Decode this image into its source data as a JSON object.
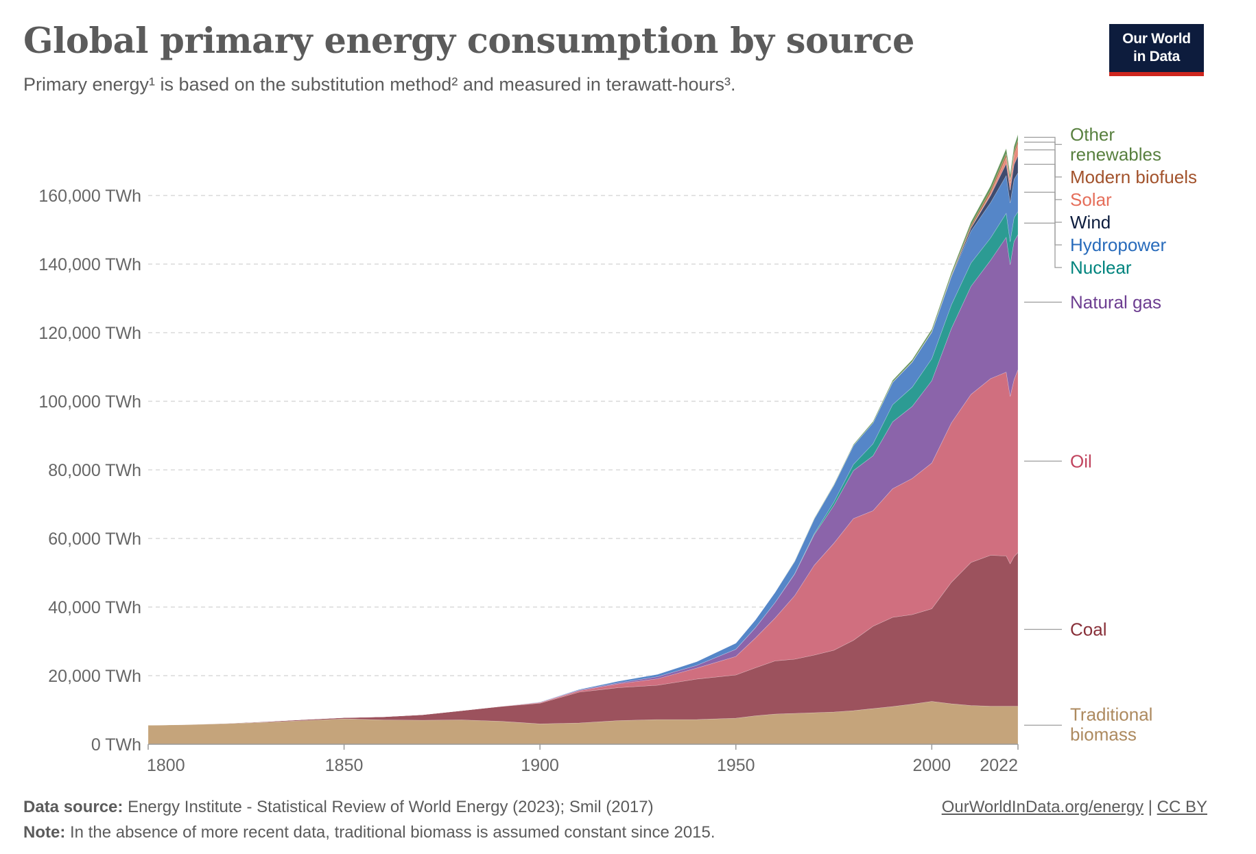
{
  "title": "Global primary energy consumption by source",
  "subtitle": "Primary energy¹ is based on the substitution method² and measured in terawatt-hours³.",
  "logo": {
    "line1": "Our World",
    "line2": "in Data"
  },
  "footer": {
    "source_label": "Data source:",
    "source_text": "Energy Institute - Statistical Review of World Energy (2023); Smil (2017)",
    "note_label": "Note:",
    "note_text": "In the absence of more recent data, traditional biomass is assumed constant since 2015.",
    "link_text": "OurWorldInData.org/energy",
    "separator": "|",
    "license": "CC BY"
  },
  "chart_data": {
    "type": "area",
    "stacked": true,
    "title": "Global primary energy consumption by source",
    "xlabel": "",
    "ylabel": "",
    "xlim": [
      1800,
      2022
    ],
    "ylim": [
      0,
      180000
    ],
    "grid": true,
    "x_ticks": [
      1800,
      1850,
      1900,
      1950,
      2000,
      2022
    ],
    "x_tick_labels": [
      "1800",
      "1850",
      "1900",
      "1950",
      "2000",
      "2022"
    ],
    "y_ticks": [
      0,
      20000,
      40000,
      60000,
      80000,
      100000,
      120000,
      140000,
      160000
    ],
    "y_tick_labels": [
      "0 TWh",
      "20,000 TWh",
      "40,000 TWh",
      "60,000 TWh",
      "80,000 TWh",
      "100,000 TWh",
      "120,000 TWh",
      "140,000 TWh",
      "160,000 TWh"
    ],
    "legend_position": "right",
    "x": [
      1800,
      1810,
      1820,
      1830,
      1840,
      1850,
      1860,
      1870,
      1880,
      1890,
      1900,
      1910,
      1920,
      1930,
      1940,
      1950,
      1955,
      1960,
      1965,
      1970,
      1975,
      1980,
      1985,
      1990,
      1995,
      2000,
      2005,
      2010,
      2015,
      2019,
      2020,
      2021,
      2022
    ],
    "series": [
      {
        "name": "Traditional biomass",
        "label_lines": [
          "Traditional",
          "biomass"
        ],
        "color": "#c5a47b",
        "label_color": "#ad8a5f",
        "values": [
          5550,
          5700,
          6000,
          6400,
          6900,
          7400,
          7100,
          7000,
          7100,
          6700,
          5950,
          6200,
          6900,
          7200,
          7200,
          7600,
          8300,
          8800,
          9000,
          9200,
          9400,
          9800,
          10400,
          11000,
          11700,
          12500,
          11800,
          11300,
          11100,
          11100,
          11100,
          11100,
          11100
        ]
      },
      {
        "name": "Coal",
        "label_lines": [
          "Coal"
        ],
        "color": "#9c525d",
        "label_color": "#883039",
        "values": [
          0,
          50,
          100,
          200,
          300,
          350,
          900,
          1600,
          2700,
          4300,
          6000,
          9000,
          9600,
          10000,
          11800,
          12600,
          14000,
          15500,
          15800,
          16800,
          18000,
          20500,
          24000,
          26000,
          26100,
          27000,
          35400,
          41700,
          44000,
          43800,
          41500,
          43600,
          44800
        ]
      },
      {
        "name": "Oil",
        "label_lines": [
          "Oil"
        ],
        "color": "#d06f7f",
        "label_color": "#c1445e",
        "values": [
          0,
          0,
          0,
          0,
          0,
          0,
          0,
          0,
          0,
          50,
          200,
          400,
          1100,
          1900,
          3200,
          5400,
          8700,
          12500,
          18500,
          26200,
          31200,
          35500,
          33700,
          37500,
          39700,
          42500,
          46500,
          49000,
          51500,
          53600,
          48800,
          51600,
          53300
        ]
      },
      {
        "name": "Natural gas",
        "label_lines": [
          "Natural gas"
        ],
        "color": "#8b64aa",
        "label_color": "#6d3e91",
        "values": [
          0,
          0,
          0,
          0,
          0,
          0,
          0,
          0,
          0,
          0,
          100,
          200,
          300,
          600,
          800,
          2100,
          3000,
          4500,
          6300,
          8900,
          11000,
          14000,
          16000,
          19500,
          21000,
          24000,
          27500,
          31500,
          34500,
          39300,
          38400,
          40300,
          39400
        ]
      },
      {
        "name": "Nuclear",
        "label_lines": [
          "Nuclear"
        ],
        "color": "#2c9b93",
        "label_color": "#00847e",
        "values": [
          0,
          0,
          0,
          0,
          0,
          0,
          0,
          0,
          0,
          0,
          0,
          0,
          0,
          0,
          0,
          0,
          0,
          10,
          100,
          300,
          1000,
          1800,
          3500,
          5000,
          5600,
          6400,
          6900,
          6800,
          6500,
          7000,
          6700,
          6900,
          6700
        ]
      },
      {
        "name": "Hydropower",
        "label_lines": [
          "Hydropower"
        ],
        "color": "#5586c8",
        "label_color": "#286bbb",
        "values": [
          0,
          0,
          0,
          0,
          0,
          0,
          0,
          0,
          0,
          0,
          100,
          200,
          500,
          700,
          1100,
          1800,
          2300,
          3000,
          3600,
          4300,
          4900,
          5500,
          6100,
          6500,
          7300,
          7700,
          8200,
          9300,
          10300,
          11000,
          11300,
          11200,
          11300
        ]
      },
      {
        "name": "Wind",
        "label_lines": [
          "Wind"
        ],
        "color": "#3f4b6e",
        "label_color": "#0c1c3d",
        "values": [
          0,
          0,
          0,
          0,
          0,
          0,
          0,
          0,
          0,
          0,
          0,
          0,
          0,
          0,
          0,
          0,
          0,
          0,
          0,
          0,
          0,
          0,
          0,
          10,
          20,
          80,
          250,
          900,
          2100,
          3500,
          3700,
          4300,
          5000
        ]
      },
      {
        "name": "Solar",
        "label_lines": [
          "Solar"
        ],
        "color": "#e8897c",
        "label_color": "#e56e5a",
        "values": [
          0,
          0,
          0,
          0,
          0,
          0,
          0,
          0,
          0,
          0,
          0,
          0,
          0,
          0,
          0,
          0,
          0,
          0,
          0,
          0,
          0,
          0,
          0,
          0,
          0,
          0,
          5,
          80,
          650,
          1800,
          2100,
          2600,
          3400
        ]
      },
      {
        "name": "Modern biofuels",
        "label_lines": [
          "Modern biofuels"
        ],
        "color": "#b0693d",
        "label_color": "#a2522b",
        "values": [
          0,
          0,
          0,
          0,
          0,
          0,
          0,
          0,
          0,
          0,
          0,
          0,
          0,
          0,
          0,
          0,
          0,
          0,
          0,
          0,
          0,
          0,
          0,
          80,
          100,
          130,
          230,
          700,
          850,
          1000,
          950,
          1030,
          1100
        ]
      },
      {
        "name": "Other renewables",
        "label_lines": [
          "Other",
          "renewables"
        ],
        "color": "#64945a",
        "label_color": "#58803f",
        "values": [
          0,
          0,
          0,
          0,
          0,
          0,
          0,
          0,
          0,
          0,
          0,
          0,
          0,
          0,
          0,
          0,
          0,
          0,
          100,
          150,
          200,
          300,
          400,
          500,
          600,
          700,
          800,
          1000,
          1300,
          1600,
          1600,
          1700,
          1700
        ]
      }
    ]
  }
}
